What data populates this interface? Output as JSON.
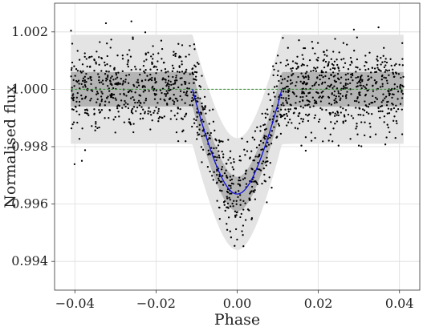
{
  "chart_data": {
    "type": "scatter",
    "title": "",
    "xlabel": "Phase",
    "ylabel": "Normalised flux",
    "xlim": [
      -0.045,
      0.045
    ],
    "ylim": [
      0.993,
      1.003
    ],
    "xticks": [
      -0.04,
      -0.02,
      0.0,
      0.02,
      0.04
    ],
    "xtick_labels": [
      "−0.04",
      "−0.02",
      "0.00",
      "0.02",
      "0.04"
    ],
    "yticks": [
      0.994,
      0.996,
      0.998,
      1.0,
      1.002
    ],
    "ytick_labels": [
      "0.994",
      "0.996",
      "0.998",
      "1.000",
      "1.002"
    ],
    "grid": true,
    "legend": "none",
    "transit": {
      "phase_range": [
        -0.011,
        0.011
      ],
      "baseline": 1.0,
      "min_flux": 0.99635,
      "data_range": [
        -0.041,
        0.041
      ]
    },
    "bands": [
      {
        "name": "outer",
        "halfwidth_out": 0.0019,
        "halfwidth_in": 0.00195,
        "color": "#e4e4e4"
      },
      {
        "name": "inner",
        "halfwidth_out": 0.0006,
        "halfwidth_in": 0.0006,
        "color": "#b4b4b4"
      }
    ],
    "series": [
      {
        "values": "sampled",
        "color": "#000000",
        "marker": "dot"
      },
      {
        "values": "transit model",
        "color": "#1010dd",
        "style": "solid"
      },
      {
        "values": "baseline",
        "color": "#2e8b2e",
        "style": "dashed"
      }
    ]
  }
}
